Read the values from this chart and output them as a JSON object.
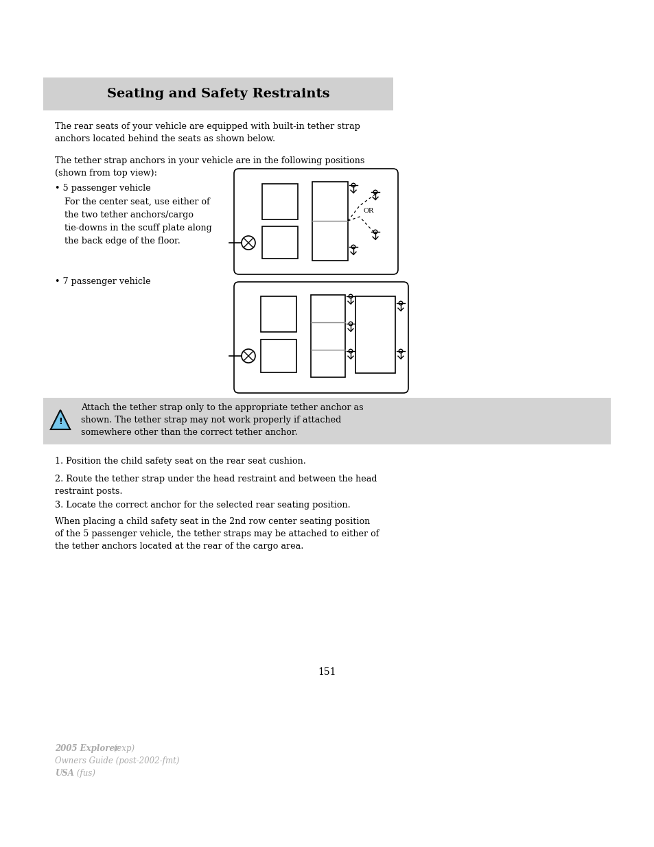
{
  "title": "Seating and Safety Restraints",
  "page_bg": "#ffffff",
  "header_bg": "#d0d0d0",
  "page_number": "151",
  "para1": "The rear seats of your vehicle are equipped with built-in tether strap\nanchors located behind the seats as shown below.",
  "para2": "The tether strap anchors in your vehicle are in the following positions\n(shown from top view):",
  "bullet1": "• 5 passenger vehicle",
  "bullet1_sub": "For the center seat, use either of\nthe two tether anchors/cargo\ntie-downs in the scuff plate along\nthe back edge of the floor.",
  "bullet2": "• 7 passenger vehicle",
  "warning_text": "Attach the tether strap only to the appropriate tether anchor as\nshown. The tether strap may not work properly if attached\nsomewhere other than the correct tether anchor.",
  "step1": "1. Position the child safety seat on the rear seat cushion.",
  "step2": "2. Route the tether strap under the head restraint and between the head\nrestraint posts.",
  "step3": "3. Locate the correct anchor for the selected rear seating position.",
  "para_last": "When placing a child safety seat in the 2nd row center seating position\nof the 5 passenger vehicle, the tether straps may be attached to either of\nthe tether anchors located at the rear of the cargo area.",
  "footer_bold1": "2005 Explorer",
  "footer_italic1": " (exp)",
  "footer_line2": "Owners Guide (post-2002-fmt)",
  "footer_bold3": "USA",
  "footer_italic3": " (fus)",
  "text_color": "#000000",
  "gray_text": "#aaaaaa",
  "warning_bg": "#d3d3d3"
}
